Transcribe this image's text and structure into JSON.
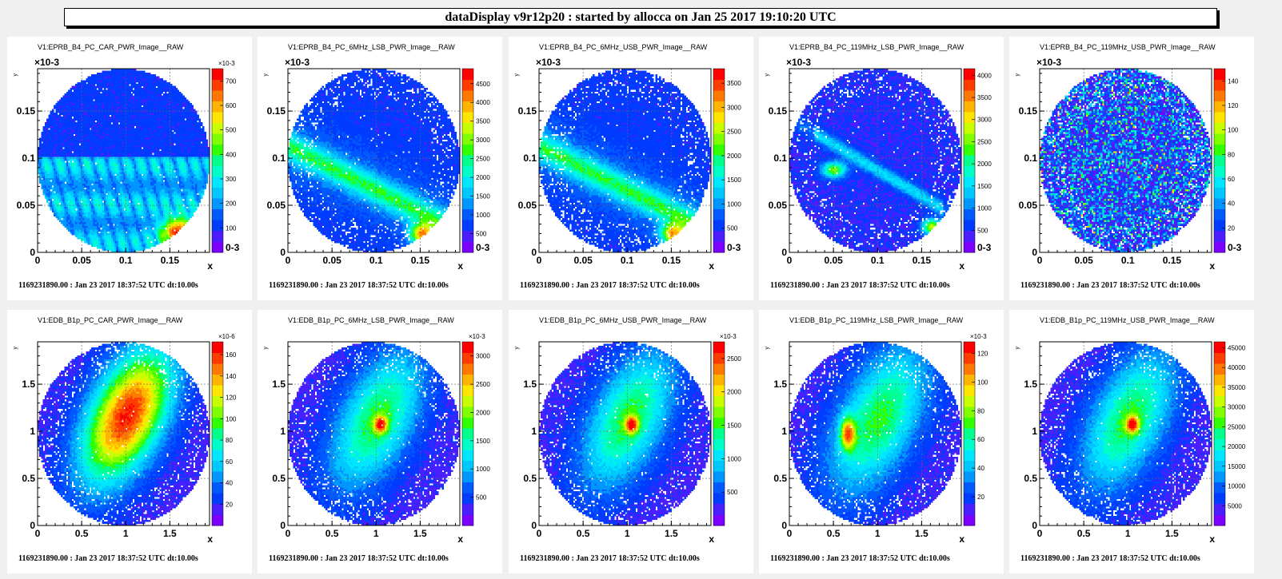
{
  "header": {
    "title": "dataDisplay v9r12p20 : started by allocca on Jan 25 2017 19:10:20 UTC"
  },
  "palette": [
    "#7b00ff",
    "#4a1eff",
    "#003cff",
    "#005aff",
    "#0096ff",
    "#00c8ff",
    "#00e6ff",
    "#00ffc8",
    "#00ff8c",
    "#32ff00",
    "#7fff00",
    "#c8ff00",
    "#ffe600",
    "#ffb400",
    "#ff7800",
    "#ff3c00",
    "#ff0000"
  ],
  "footer_text": "1169231890.00 : Jan 23 2017 18:37:52 UTC dt:10.00s",
  "chart_data": [
    {
      "type": "heatmap",
      "title": "V1:EPRB_B4_PC_CAR_PWR_Image__RAW",
      "xlabel": "x",
      "ylabel": "y",
      "xlim": [
        0,
        0.195
      ],
      "ylim": [
        0,
        0.195
      ],
      "axis_exponent": "×10-3",
      "xticks": [
        "0",
        "0.05",
        "0.1",
        "0.15"
      ],
      "yticks": [
        "0",
        "0.05",
        "0.1",
        "0.15"
      ],
      "z_exponent": "×10-3",
      "zticks": [
        "100",
        "200",
        "300",
        "400",
        "500",
        "600",
        "700"
      ],
      "zmin_label": "0-3",
      "zmax": 750,
      "pattern": "waves",
      "grid": true
    },
    {
      "type": "heatmap",
      "title": "V1:EPRB_B4_PC_6MHz_LSB_PWR_Image__RAW",
      "xlabel": "x",
      "ylabel": "y",
      "xlim": [
        0,
        0.195
      ],
      "ylim": [
        0,
        0.195
      ],
      "axis_exponent": "×10-3",
      "xticks": [
        "0",
        "0.05",
        "0.1",
        "0.15"
      ],
      "yticks": [
        "0",
        "0.05",
        "0.1",
        "0.15"
      ],
      "z_exponent": "",
      "zticks": [
        "500",
        "1000",
        "1500",
        "2000",
        "2500",
        "3000",
        "3500",
        "4000",
        "4500"
      ],
      "zmin_label": "0-3",
      "zmax": 4900,
      "pattern": "band",
      "grid": true
    },
    {
      "type": "heatmap",
      "title": "V1:EPRB_B4_PC_6MHz_USB_PWR_Image__RAW",
      "xlabel": "x",
      "ylabel": "y",
      "xlim": [
        0,
        0.195
      ],
      "ylim": [
        0,
        0.195
      ],
      "axis_exponent": "×10-3",
      "xticks": [
        "0",
        "0.05",
        "0.1",
        "0.15"
      ],
      "yticks": [
        "0",
        "0.05",
        "0.1",
        "0.15"
      ],
      "z_exponent": "",
      "zticks": [
        "500",
        "1000",
        "1500",
        "2000",
        "2500",
        "3000",
        "3500"
      ],
      "zmin_label": "0-3",
      "zmax": 3800,
      "pattern": "band",
      "grid": true
    },
    {
      "type": "heatmap",
      "title": "V1:EPRB_B4_PC_119MHz_LSB_PWR_Image__RAW",
      "xlabel": "x",
      "ylabel": "y",
      "xlim": [
        0,
        0.195
      ],
      "ylim": [
        0,
        0.195
      ],
      "axis_exponent": "×10-3",
      "xticks": [
        "0",
        "0.05",
        "0.1",
        "0.15"
      ],
      "yticks": [
        "0",
        "0.05",
        "0.1",
        "0.15"
      ],
      "z_exponent": "",
      "zticks": [
        "500",
        "1000",
        "1500",
        "2000",
        "2500",
        "3000",
        "3500",
        "4000"
      ],
      "zmin_label": "0-3",
      "zmax": 4150,
      "pattern": "streak",
      "grid": true
    },
    {
      "type": "heatmap",
      "title": "V1:EPRB_B4_PC_119MHz_USB_PWR_Image__RAW",
      "xlabel": "x",
      "ylabel": "y",
      "xlim": [
        0,
        0.195
      ],
      "ylim": [
        0,
        0.195
      ],
      "axis_exponent": "×10-3",
      "xticks": [
        "0",
        "0.05",
        "0.1",
        "0.15"
      ],
      "yticks": [
        "0",
        "0.05",
        "0.1",
        "0.15"
      ],
      "z_exponent": "",
      "zticks": [
        "20",
        "40",
        "60",
        "80",
        "100",
        "120",
        "140"
      ],
      "zmin_label": "0-3",
      "zmax": 150,
      "pattern": "noise",
      "grid": true
    },
    {
      "type": "heatmap",
      "title": "V1:EDB_B1p_PC_CAR_PWR_Image__RAW",
      "xlabel": "x",
      "ylabel": "y",
      "xlim": [
        0,
        1.95
      ],
      "ylim": [
        0,
        1.95
      ],
      "axis_exponent": "",
      "xticks": [
        "0",
        "0.5",
        "1",
        "1.5"
      ],
      "yticks": [
        "0",
        "0.5",
        "1",
        "1.5"
      ],
      "z_exponent": "×10-6",
      "zticks": [
        "20",
        "40",
        "60",
        "80",
        "100",
        "120",
        "140",
        "160"
      ],
      "zmin_label": "",
      "zmax": 172,
      "pattern": "blob",
      "grid": true
    },
    {
      "type": "heatmap",
      "title": "V1:EDB_B1p_PC_6MHz_LSB_PWR_Image__RAW",
      "xlabel": "x",
      "ylabel": "y",
      "xlim": [
        0,
        1.95
      ],
      "ylim": [
        0,
        1.95
      ],
      "axis_exponent": "",
      "xticks": [
        "0",
        "0.5",
        "1",
        "1.5"
      ],
      "yticks": [
        "0",
        "0.5",
        "1",
        "1.5"
      ],
      "z_exponent": "×10-3",
      "zticks": [
        "500",
        "1000",
        "1500",
        "2000",
        "2500",
        "3000"
      ],
      "zmin_label": "",
      "zmax": 3250,
      "pattern": "peak",
      "grid": true
    },
    {
      "type": "heatmap",
      "title": "V1:EDB_B1p_PC_6MHz_USB_PWR_Image__RAW",
      "xlabel": "x",
      "ylabel": "y",
      "xlim": [
        0,
        1.95
      ],
      "ylim": [
        0,
        1.95
      ],
      "axis_exponent": "",
      "xticks": [
        "0",
        "0.5",
        "1",
        "1.5"
      ],
      "yticks": [
        "0",
        "0.5",
        "1",
        "1.5"
      ],
      "z_exponent": "×10-3",
      "zticks": [
        "500",
        "1000",
        "1500",
        "2000",
        "2500"
      ],
      "zmin_label": "",
      "zmax": 2750,
      "pattern": "peak",
      "grid": true
    },
    {
      "type": "heatmap",
      "title": "V1:EDB_B1p_PC_119MHz_LSB_PWR_Image__RAW",
      "xlabel": "x",
      "ylabel": "y",
      "xlim": [
        0,
        1.95
      ],
      "ylim": [
        0,
        1.95
      ],
      "axis_exponent": "",
      "xticks": [
        "0",
        "0.5",
        "1",
        "1.5"
      ],
      "yticks": [
        "0",
        "0.5",
        "1",
        "1.5"
      ],
      "z_exponent": "×10-3",
      "zticks": [
        "20",
        "40",
        "60",
        "80",
        "100",
        "120"
      ],
      "zmin_label": "",
      "zmax": 128,
      "pattern": "offpeak",
      "grid": true
    },
    {
      "type": "heatmap",
      "title": "V1:EDB_B1p_PC_119MHz_USB_PWR_Image__RAW",
      "xlabel": "x",
      "ylabel": "y",
      "xlim": [
        0,
        1.95
      ],
      "ylim": [
        0,
        1.95
      ],
      "axis_exponent": "",
      "xticks": [
        "0",
        "0.5",
        "1",
        "1.5"
      ],
      "yticks": [
        "0",
        "0.5",
        "1",
        "1.5"
      ],
      "z_exponent": "",
      "zticks": [
        "5000",
        "10000",
        "15000",
        "20000",
        "25000",
        "30000",
        "35000",
        "40000",
        "45000"
      ],
      "zmin_label": "",
      "zmax": 46500,
      "pattern": "peak",
      "grid": true
    }
  ]
}
